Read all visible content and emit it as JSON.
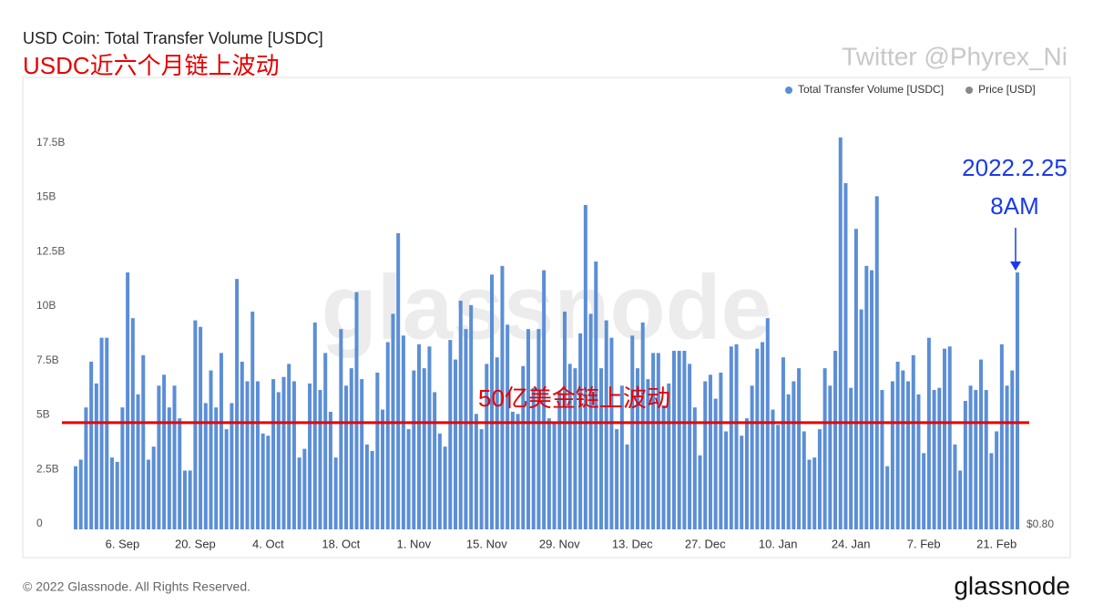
{
  "chart_data": {
    "type": "bar",
    "title": "USD Coin: Total Transfer Volume [USDC]",
    "annotation_title": "USDC近六个月链上波动",
    "credit": "Twitter @Phyrex_Ni",
    "watermark": "glassnode",
    "arrow_labels": [
      "2022.2.25",
      "8AM"
    ],
    "threshold": {
      "label": "50亿美金链上波动",
      "value": 4.9,
      "color": "#e60000"
    },
    "footer": "© 2022 Glassnode. All Rights Reserved.",
    "brand": "glassnode",
    "categories": [
      null,
      null,
      null,
      null,
      null,
      null,
      null,
      null,
      null,
      "6. Sep",
      null,
      null,
      null,
      null,
      null,
      null,
      null,
      null,
      null,
      null,
      null,
      null,
      null,
      "20. Sep",
      null,
      null,
      null,
      null,
      null,
      null,
      null,
      null,
      null,
      null,
      null,
      null,
      null,
      "4. Oct",
      null,
      null,
      null,
      null,
      null,
      null,
      null,
      null,
      null,
      null,
      null,
      null,
      null,
      "18. Oct",
      null,
      null,
      null,
      null,
      null,
      null,
      null,
      null,
      null,
      null,
      null,
      null,
      null,
      "1. Nov",
      null,
      null,
      null,
      null,
      null,
      null,
      null,
      null,
      null,
      null,
      null,
      null,
      null,
      "15. Nov",
      null,
      null,
      null,
      null,
      null,
      null,
      null,
      null,
      null,
      null,
      null,
      null,
      null,
      "29. Nov",
      null,
      null,
      null,
      null,
      null,
      null,
      null,
      null,
      null,
      null,
      null,
      null,
      null,
      "13. Dec",
      null,
      null,
      null,
      null,
      null,
      null,
      null,
      null,
      null,
      null,
      null,
      null,
      null,
      "27. Dec",
      null,
      null,
      null,
      null,
      null,
      null,
      null,
      null,
      null,
      null,
      null,
      null,
      null,
      "10. Jan",
      null,
      null,
      null,
      null,
      null,
      null,
      null,
      null,
      null,
      null,
      null,
      null,
      null,
      "24. Jan",
      null,
      null,
      null,
      null,
      null,
      null,
      null,
      null,
      null,
      null,
      null,
      null,
      null,
      "7. Feb",
      null,
      null,
      null,
      null,
      null,
      null,
      null,
      null,
      null,
      null,
      null,
      null,
      null,
      "21. Feb",
      null,
      null,
      null,
      null
    ],
    "series": [
      {
        "name": "Total Transfer Volume [USDC]",
        "color": "#5b8ed6",
        "values": [
          2.9,
          3.2,
          5.6,
          7.7,
          6.7,
          8.8,
          8.8,
          3.3,
          3.1,
          5.6,
          11.8,
          9.7,
          6.2,
          8.0,
          3.2,
          3.8,
          6.6,
          7.1,
          5.6,
          6.6,
          5.1,
          2.7,
          2.7,
          9.6,
          9.3,
          5.8,
          7.3,
          5.6,
          8.1,
          4.6,
          5.8,
          11.5,
          7.7,
          6.8,
          10.0,
          6.8,
          4.4,
          4.3,
          6.9,
          6.3,
          7.0,
          7.6,
          6.8,
          3.3,
          3.7,
          6.7,
          9.5,
          6.4,
          8.1,
          5.4,
          3.3,
          9.2,
          6.6,
          7.4,
          10.9,
          6.9,
          3.9,
          3.6,
          7.2,
          5.5,
          8.6,
          9.9,
          13.6,
          8.9,
          4.6,
          7.3,
          8.5,
          7.4,
          8.4,
          6.3,
          4.4,
          3.8,
          8.7,
          7.8,
          10.5,
          9.2,
          10.3,
          5.3,
          4.6,
          7.6,
          11.7,
          7.9,
          12.1,
          9.4,
          5.4,
          5.3,
          7.5,
          9.2,
          6.5,
          9.2,
          11.9,
          5.1,
          4.9,
          6.3,
          10.0,
          7.6,
          7.4,
          9.0,
          14.9,
          9.9,
          12.3,
          7.4,
          9.6,
          8.8,
          4.6,
          6.6,
          3.9,
          8.9,
          7.4,
          9.5,
          6.9,
          8.1,
          8.1,
          5.7,
          6.7,
          8.2,
          8.2,
          8.2,
          7.6,
          5.6,
          3.4,
          6.8,
          7.1,
          6.0,
          7.2,
          4.5,
          8.4,
          8.5,
          4.3,
          5.1,
          6.6,
          8.3,
          8.6,
          9.7,
          5.5,
          4.8,
          7.9,
          6.2,
          6.8,
          7.4,
          4.5,
          3.2,
          3.3,
          4.6,
          7.4,
          6.6,
          8.2,
          18.0,
          15.9,
          6.5,
          13.8,
          10.1,
          12.1,
          11.9,
          15.3,
          6.4,
          2.9,
          6.8,
          7.7,
          7.3,
          6.8,
          8.0,
          6.2,
          3.5,
          8.8,
          6.4,
          6.5,
          8.3,
          8.4,
          3.9,
          2.7,
          5.9,
          6.6,
          6.4,
          7.8,
          6.4,
          3.5,
          4.5,
          8.5,
          6.6,
          7.3,
          11.8
        ]
      },
      {
        "name": "Price [USD]",
        "color": "#888888",
        "axis": "y2"
      }
    ],
    "ylim": [
      0,
      19.5
    ],
    "yticks": [
      0,
      {
        "value": 2.5,
        "label": "2.5B"
      },
      {
        "value": 5,
        "label": "5B"
      },
      {
        "value": 7.5,
        "label": "7.5B"
      },
      {
        "value": 10,
        "label": "10B"
      },
      {
        "value": 12.5,
        "label": "12.5B"
      },
      {
        "value": 15,
        "label": "15B"
      },
      {
        "value": 17.5,
        "label": "17.5B"
      }
    ],
    "y2ticks": [
      {
        "value": 0.8,
        "label": "$0.80"
      }
    ],
    "grid": false
  }
}
